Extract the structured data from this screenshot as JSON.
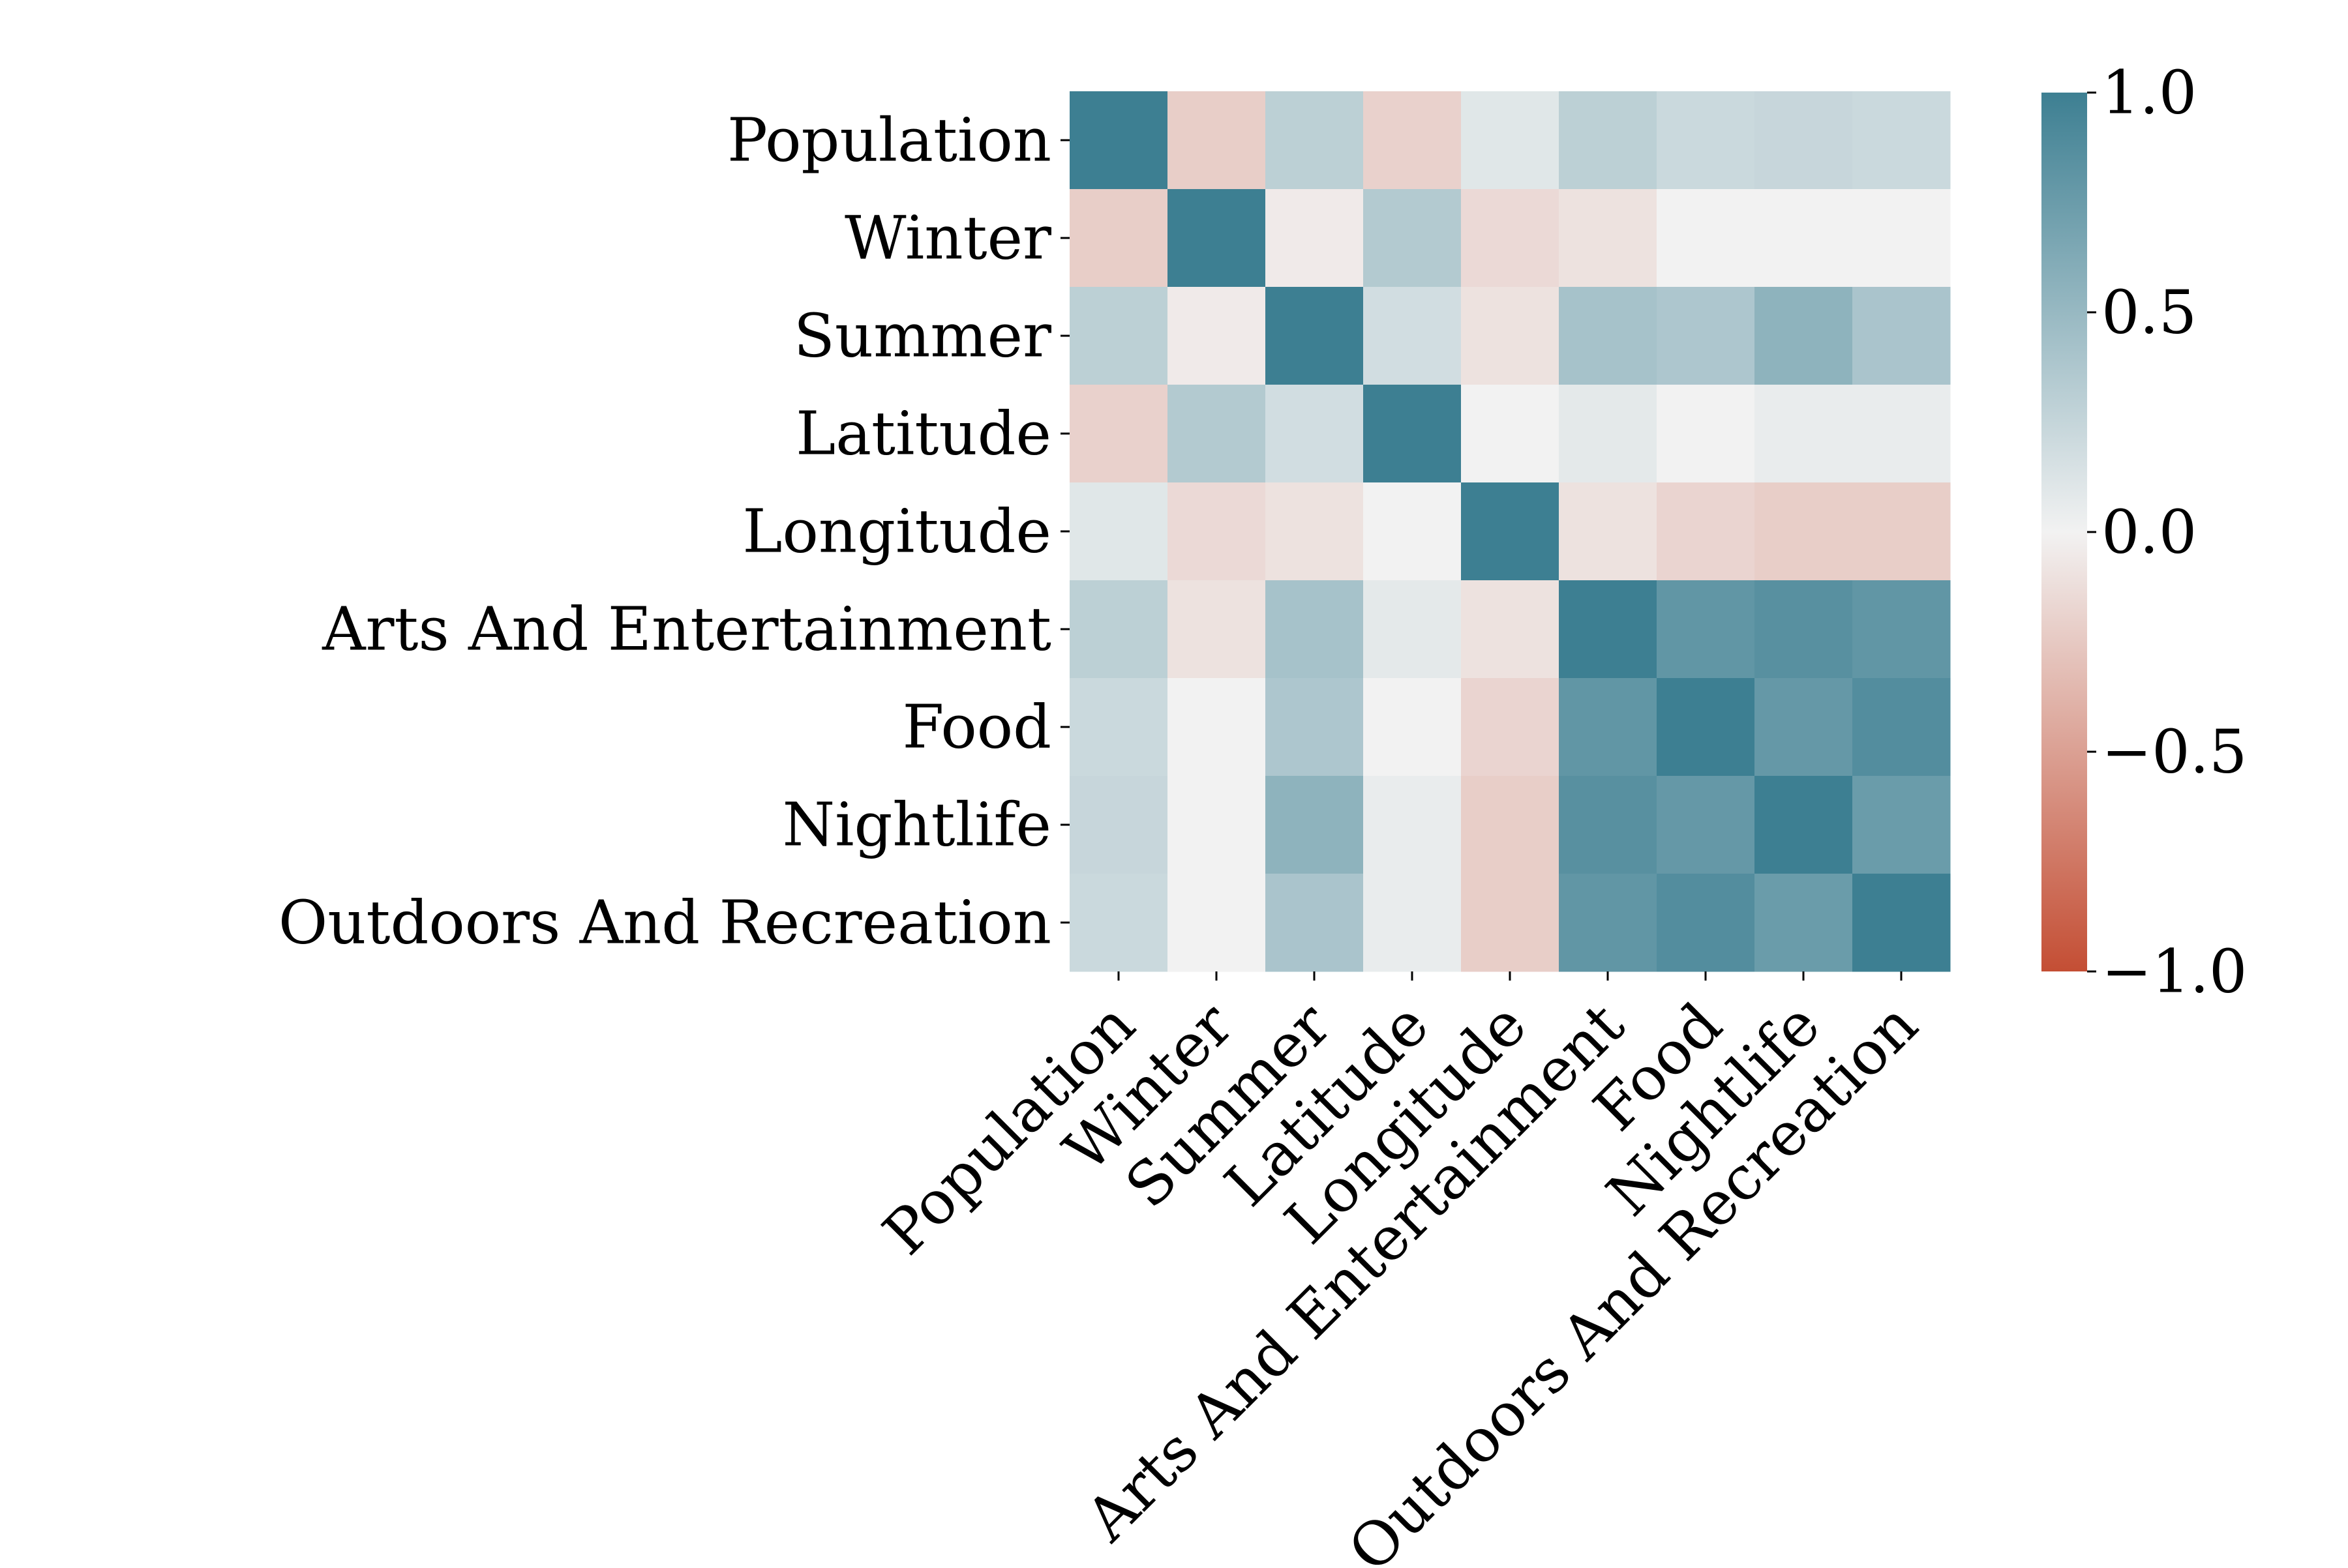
{
  "chart_data": {
    "type": "heatmap",
    "title": "",
    "xlabel": "",
    "ylabel": "",
    "x_categories": [
      "Population",
      "Winter",
      "Summer",
      "Latitude",
      "Longitude",
      "Arts And Entertainment",
      "Food",
      "Nightlife",
      "Outdoors And Recreation"
    ],
    "y_categories": [
      "Population",
      "Winter",
      "Summer",
      "Latitude",
      "Longitude",
      "Arts And Entertainment",
      "Food",
      "Nightlife",
      "Outdoors And Recreation"
    ],
    "values": [
      [
        1.0,
        -0.22,
        0.3,
        -0.2,
        0.1,
        0.3,
        0.22,
        0.24,
        0.22
      ],
      [
        -0.22,
        1.0,
        -0.05,
        0.35,
        -0.15,
        -0.1,
        0.0,
        0.0,
        0.0
      ],
      [
        0.3,
        -0.05,
        1.0,
        0.18,
        -0.1,
        0.42,
        0.38,
        0.55,
        0.4
      ],
      [
        -0.2,
        0.35,
        0.18,
        1.0,
        0.0,
        0.08,
        0.0,
        0.05,
        0.05
      ],
      [
        0.1,
        -0.15,
        -0.1,
        0.0,
        1.0,
        -0.1,
        -0.18,
        -0.22,
        -0.22
      ],
      [
        0.3,
        -0.1,
        0.42,
        0.08,
        -0.1,
        1.0,
        0.8,
        0.85,
        0.8
      ],
      [
        0.22,
        0.0,
        0.38,
        0.0,
        -0.18,
        0.8,
        1.0,
        0.78,
        0.88
      ],
      [
        0.24,
        0.0,
        0.55,
        0.05,
        -0.22,
        0.85,
        0.78,
        1.0,
        0.75
      ],
      [
        0.22,
        0.0,
        0.4,
        0.05,
        -0.22,
        0.8,
        0.88,
        0.75,
        1.0
      ]
    ],
    "colorbar": {
      "min": -1.0,
      "max": 1.0,
      "ticks": [
        1.0,
        0.5,
        0.0,
        -0.5,
        -1.0
      ],
      "tick_labels": [
        "1.0",
        "0.5",
        "0.0",
        "−0.5",
        "−1.0"
      ]
    },
    "colors": {
      "negative": "#c44e34",
      "neutral": "#f2f2f2",
      "positive": "#3d7f92"
    },
    "grid": false,
    "legend": "colorbar-right"
  }
}
